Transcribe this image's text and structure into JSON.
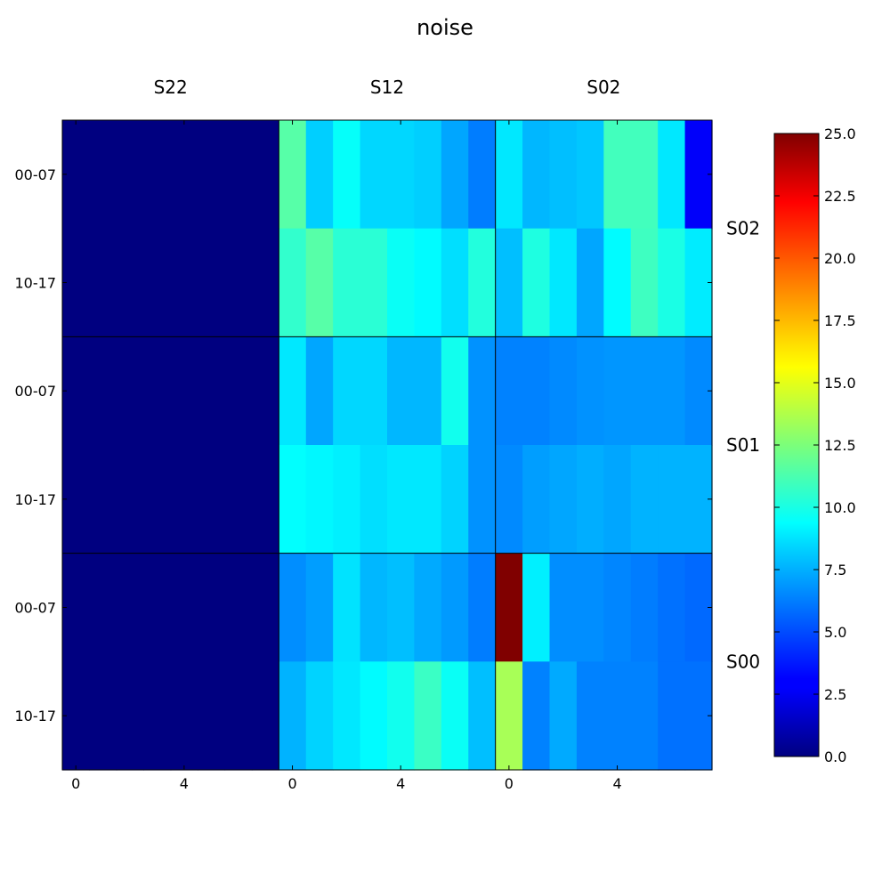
{
  "chart_data": {
    "type": "heatmap",
    "title": "noise",
    "xlabel": "",
    "ylabel": "",
    "column_groups": [
      "S22",
      "S12",
      "S02"
    ],
    "row_groups": [
      "S02",
      "S01",
      "S00"
    ],
    "x_tick_labels": [
      "0",
      "4"
    ],
    "y_tick_labels": [
      "00-07",
      "10-17"
    ],
    "columns_per_group": 8,
    "rows": [
      {
        "row_group": "S02",
        "label": "00-07",
        "values": [
          0,
          0,
          0,
          0,
          0,
          0,
          0,
          0,
          11.5,
          8.2,
          9.5,
          8.4,
          8.4,
          8.2,
          7.2,
          6.2,
          8.8,
          7.6,
          7.8,
          8.0,
          11.0,
          11.0,
          8.8,
          3.0
        ]
      },
      {
        "row_group": "S02",
        "label": "10-17",
        "values": [
          0,
          0,
          0,
          0,
          0,
          0,
          0,
          0,
          10.6,
          11.5,
          10.4,
          10.4,
          9.6,
          9.3,
          8.6,
          10.2,
          7.8,
          10.1,
          8.8,
          7.2,
          9.3,
          10.9,
          10.0,
          8.9
        ]
      },
      {
        "row_group": "S01",
        "label": "00-07",
        "values": [
          0,
          0,
          0,
          0,
          0,
          0,
          0,
          0,
          8.8,
          7.2,
          8.4,
          8.4,
          7.6,
          7.6,
          9.8,
          6.7,
          6.3,
          6.3,
          6.5,
          6.7,
          6.8,
          6.8,
          6.8,
          6.5
        ]
      },
      {
        "row_group": "S01",
        "label": "10-17",
        "values": [
          0,
          0,
          0,
          0,
          0,
          0,
          0,
          0,
          9.4,
          9.2,
          9.0,
          8.6,
          8.8,
          8.8,
          8.3,
          6.7,
          6.5,
          7.0,
          7.2,
          7.4,
          7.2,
          7.5,
          7.5,
          7.5
        ]
      },
      {
        "row_group": "S00",
        "label": "00-07",
        "values": [
          0,
          0,
          0,
          0,
          0,
          0,
          0,
          0,
          6.6,
          7.0,
          8.7,
          7.6,
          7.8,
          7.3,
          6.9,
          6.2,
          25.0,
          9.0,
          6.6,
          6.6,
          6.4,
          6.2,
          5.9,
          5.7
        ]
      },
      {
        "row_group": "S00",
        "label": "10-17",
        "values": [
          0,
          0,
          0,
          0,
          0,
          0,
          0,
          0,
          7.5,
          8.3,
          8.8,
          9.3,
          9.8,
          10.8,
          9.6,
          7.8,
          13.5,
          6.3,
          7.3,
          6.3,
          6.3,
          6.3,
          5.9,
          5.9
        ]
      }
    ],
    "colorbar": {
      "colormap": "jet",
      "min": 0.0,
      "max": 25.0,
      "tick_labels": [
        "0.0",
        "2.5",
        "5.0",
        "7.5",
        "10.0",
        "12.5",
        "15.0",
        "17.5",
        "20.0",
        "22.5",
        "25.0"
      ],
      "tick_values": [
        0,
        2.5,
        5,
        7.5,
        10,
        12.5,
        15,
        17.5,
        20,
        22.5,
        25
      ]
    }
  }
}
